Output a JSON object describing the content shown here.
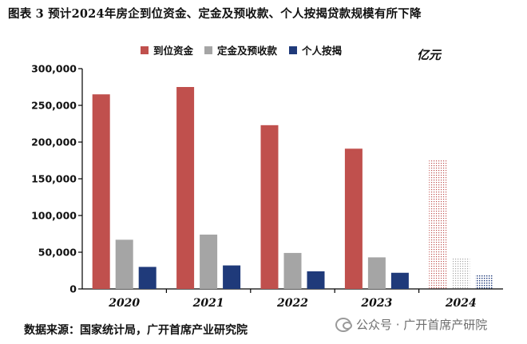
{
  "title": "图表 3 预计2024年房企到位资金、定金及预收款、个人按揭贷款规模有所下降",
  "unit_label": "亿元",
  "source": "数据来源：国家统计局，广开首席产业研究院",
  "watermark": {
    "text": "公众号 · 广开首席产研院",
    "icon": "wechat-icon"
  },
  "colors": {
    "funds": "#C0504D",
    "deposits": "#A5A5A5",
    "mortgage": "#1F3A7A"
  },
  "chart_data": {
    "type": "bar",
    "categories": [
      "2020",
      "2021",
      "2022",
      "2023",
      "2024"
    ],
    "series": [
      {
        "name": "到位资金",
        "values": [
          265000,
          275000,
          223000,
          191000,
          175000
        ]
      },
      {
        "name": "定金及预收款",
        "values": [
          67000,
          74000,
          49000,
          43000,
          43000
        ]
      },
      {
        "name": "个人按揭",
        "values": [
          30000,
          32000,
          24000,
          22000,
          20000
        ]
      }
    ],
    "forecast_categories": [
      "2024"
    ],
    "ylim": [
      0,
      300000
    ],
    "yticks": [
      "0",
      "50,000",
      "100,000",
      "150,000",
      "200,000",
      "250,000",
      "300,000"
    ],
    "ytick_values": [
      0,
      50000,
      100000,
      150000,
      200000,
      250000,
      300000
    ],
    "grid": false,
    "legend_position": "top"
  }
}
